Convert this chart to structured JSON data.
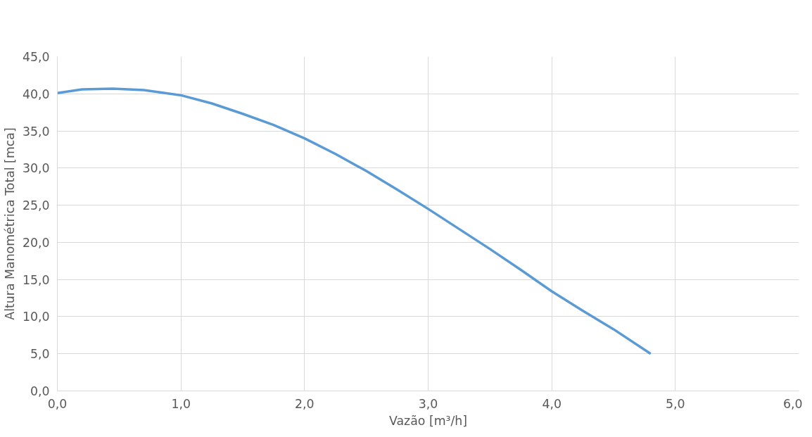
{
  "chart_data": {
    "type": "line",
    "xlabel": "Vazão [m³/h]",
    "ylabel": "Altura Manométrica Total [mca]",
    "x": [
      0,
      0.2,
      0.45,
      0.7,
      1.0,
      1.25,
      1.5,
      1.75,
      2.0,
      2.25,
      2.5,
      2.75,
      3.0,
      3.25,
      3.5,
      3.75,
      4.0,
      4.25,
      4.5,
      4.8
    ],
    "series": [
      {
        "color": "#5b9bd5",
        "values": [
          40.1,
          40.6,
          40.7,
          40.5,
          39.8,
          38.7,
          37.3,
          35.8,
          34.0,
          31.9,
          29.6,
          27.1,
          24.5,
          21.8,
          19.1,
          16.3,
          13.4,
          10.8,
          8.3,
          5.0
        ]
      }
    ],
    "xlim": [
      0,
      6
    ],
    "ylim": [
      0,
      45
    ],
    "xticks": [
      {
        "value": 0,
        "label": "0,0"
      },
      {
        "value": 1,
        "label": "1,0"
      },
      {
        "value": 2,
        "label": "2,0"
      },
      {
        "value": 3,
        "label": "3,0"
      },
      {
        "value": 4,
        "label": "4,0"
      },
      {
        "value": 5,
        "label": "5,0"
      },
      {
        "value": 6,
        "label": "6,0"
      }
    ],
    "yticks": [
      {
        "value": 0,
        "label": "0,0"
      },
      {
        "value": 5,
        "label": "5,0"
      },
      {
        "value": 10,
        "label": "10,0"
      },
      {
        "value": 15,
        "label": "15,0"
      },
      {
        "value": 20,
        "label": "20,0"
      },
      {
        "value": 25,
        "label": "25,0"
      },
      {
        "value": 30,
        "label": "30,0"
      },
      {
        "value": 35,
        "label": "35,0"
      },
      {
        "value": 40,
        "label": "40,0"
      },
      {
        "value": 45,
        "label": "45,0"
      }
    ],
    "grid": true,
    "marker": "none",
    "line_style": "solid"
  }
}
